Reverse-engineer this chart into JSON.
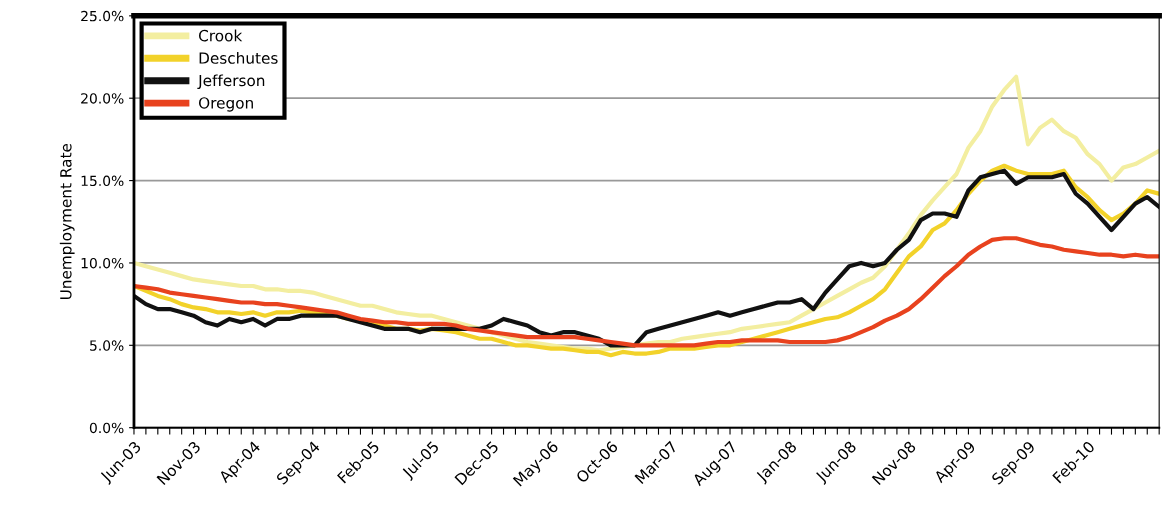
{
  "chart_data": {
    "type": "line",
    "ylabel": "Unemployment Rate",
    "categories": [
      "Jun-03",
      null,
      null,
      null,
      null,
      "Nov-03",
      null,
      null,
      null,
      null,
      "Apr-04",
      null,
      null,
      null,
      null,
      "Sep-04",
      null,
      null,
      null,
      null,
      "Feb-05",
      null,
      null,
      null,
      null,
      "Jul-05",
      null,
      null,
      null,
      null,
      "Dec-05",
      null,
      null,
      null,
      null,
      "May-06",
      null,
      null,
      null,
      null,
      "Oct-06",
      null,
      null,
      null,
      null,
      "Mar-07",
      null,
      null,
      null,
      null,
      "Aug-07",
      null,
      null,
      null,
      null,
      "Jan-08",
      null,
      null,
      null,
      null,
      "Jun-08",
      null,
      null,
      null,
      null,
      "Nov-08",
      null,
      null,
      null,
      null,
      "Apr-09",
      null,
      null,
      null,
      null,
      "Sep-09",
      null,
      null,
      null,
      null,
      "Feb-10",
      null,
      null,
      null,
      null,
      null,
      null
    ],
    "series": [
      {
        "name": "Crook",
        "color": "#f3eea0",
        "values": [
          10.0,
          9.8,
          9.6,
          9.4,
          9.2,
          9.0,
          8.9,
          8.8,
          8.7,
          8.6,
          8.6,
          8.4,
          8.4,
          8.3,
          8.3,
          8.2,
          8.0,
          7.8,
          7.6,
          7.4,
          7.4,
          7.2,
          7.0,
          6.9,
          6.8,
          6.8,
          6.6,
          6.4,
          6.2,
          6.0,
          5.8,
          5.6,
          5.4,
          5.2,
          5.1,
          5.0,
          4.9,
          4.8,
          4.8,
          4.7,
          4.8,
          4.9,
          5.0,
          5.1,
          5.2,
          5.2,
          5.4,
          5.5,
          5.6,
          5.7,
          5.8,
          6.0,
          6.1,
          6.2,
          6.3,
          6.4,
          6.8,
          7.2,
          7.6,
          8.0,
          8.4,
          8.8,
          9.1,
          9.8,
          10.8,
          11.8,
          12.9,
          13.8,
          14.6,
          15.4,
          17.0,
          18.0,
          19.5,
          20.5,
          21.3,
          17.2,
          18.2,
          18.7,
          18.0,
          17.6,
          16.6,
          16.0,
          15.0,
          15.8,
          16.0,
          16.4,
          16.8
        ]
      },
      {
        "name": "Deschutes",
        "color": "#f2d22a",
        "values": [
          8.6,
          8.3,
          8.0,
          7.8,
          7.5,
          7.3,
          7.2,
          7.0,
          7.0,
          6.9,
          7.0,
          6.8,
          7.0,
          7.0,
          7.1,
          7.0,
          6.9,
          6.8,
          6.6,
          6.5,
          6.4,
          6.2,
          6.0,
          6.0,
          5.9,
          6.0,
          5.9,
          5.8,
          5.6,
          5.4,
          5.4,
          5.2,
          5.0,
          5.0,
          4.9,
          4.8,
          4.8,
          4.7,
          4.6,
          4.6,
          4.4,
          4.6,
          4.5,
          4.5,
          4.6,
          4.8,
          4.8,
          4.8,
          4.9,
          5.0,
          5.0,
          5.2,
          5.4,
          5.6,
          5.8,
          6.0,
          6.2,
          6.4,
          6.6,
          6.7,
          7.0,
          7.4,
          7.8,
          8.4,
          9.4,
          10.4,
          11.0,
          12.0,
          12.4,
          13.2,
          14.2,
          15.0,
          15.6,
          15.9,
          15.6,
          15.4,
          15.4,
          15.4,
          15.6,
          14.6,
          14.0,
          13.2,
          12.6,
          13.0,
          13.6,
          14.4,
          14.2
        ]
      },
      {
        "name": "Jefferson",
        "color": "#111111",
        "values": [
          8.0,
          7.5,
          7.2,
          7.2,
          7.0,
          6.8,
          6.4,
          6.2,
          6.6,
          6.4,
          6.6,
          6.2,
          6.6,
          6.6,
          6.8,
          6.8,
          6.8,
          6.8,
          6.6,
          6.4,
          6.2,
          6.0,
          6.0,
          6.0,
          5.8,
          6.0,
          6.0,
          6.0,
          6.0,
          6.0,
          6.2,
          6.6,
          6.4,
          6.2,
          5.8,
          5.6,
          5.8,
          5.8,
          5.6,
          5.4,
          5.0,
          5.0,
          5.0,
          5.8,
          6.0,
          6.2,
          6.4,
          6.6,
          6.8,
          7.0,
          6.8,
          7.0,
          7.2,
          7.4,
          7.6,
          7.6,
          7.8,
          7.2,
          8.2,
          9.0,
          9.8,
          10.0,
          9.8,
          10.0,
          10.8,
          11.4,
          12.6,
          13.0,
          13.0,
          12.8,
          14.4,
          15.2,
          15.4,
          15.6,
          14.8,
          15.2,
          15.2,
          15.2,
          15.4,
          14.2,
          13.6,
          12.8,
          12.0,
          12.8,
          13.6,
          14.0,
          13.4
        ]
      },
      {
        "name": "Oregon",
        "color": "#e8421e",
        "values": [
          8.6,
          8.5,
          8.4,
          8.2,
          8.1,
          8.0,
          7.9,
          7.8,
          7.7,
          7.6,
          7.6,
          7.5,
          7.5,
          7.4,
          7.3,
          7.2,
          7.1,
          7.0,
          6.8,
          6.6,
          6.5,
          6.4,
          6.4,
          6.3,
          6.3,
          6.3,
          6.3,
          6.2,
          6.0,
          5.9,
          5.8,
          5.7,
          5.6,
          5.5,
          5.5,
          5.5,
          5.5,
          5.5,
          5.4,
          5.3,
          5.2,
          5.1,
          5.0,
          5.0,
          5.0,
          5.0,
          5.0,
          5.0,
          5.1,
          5.2,
          5.2,
          5.3,
          5.3,
          5.3,
          5.3,
          5.2,
          5.2,
          5.2,
          5.2,
          5.3,
          5.5,
          5.8,
          6.1,
          6.5,
          6.8,
          7.2,
          7.8,
          8.5,
          9.2,
          9.8,
          10.5,
          11.0,
          11.4,
          11.5,
          11.5,
          11.3,
          11.1,
          11.0,
          10.8,
          10.7,
          10.6,
          10.5,
          10.5,
          10.4,
          10.5,
          10.4,
          10.4
        ]
      }
    ],
    "ylim": [
      0,
      25
    ],
    "yticks": [
      {
        "value": 0,
        "label": "0.0%"
      },
      {
        "value": 5,
        "label": "5.0%"
      },
      {
        "value": 10,
        "label": "10.0%"
      },
      {
        "value": 15,
        "label": "15.0%"
      },
      {
        "value": 20,
        "label": "20.0%"
      },
      {
        "value": 25,
        "label": "25.0%"
      }
    ],
    "grid": "y",
    "legend": "top left",
    "marker": "none",
    "line_style": "solid"
  }
}
